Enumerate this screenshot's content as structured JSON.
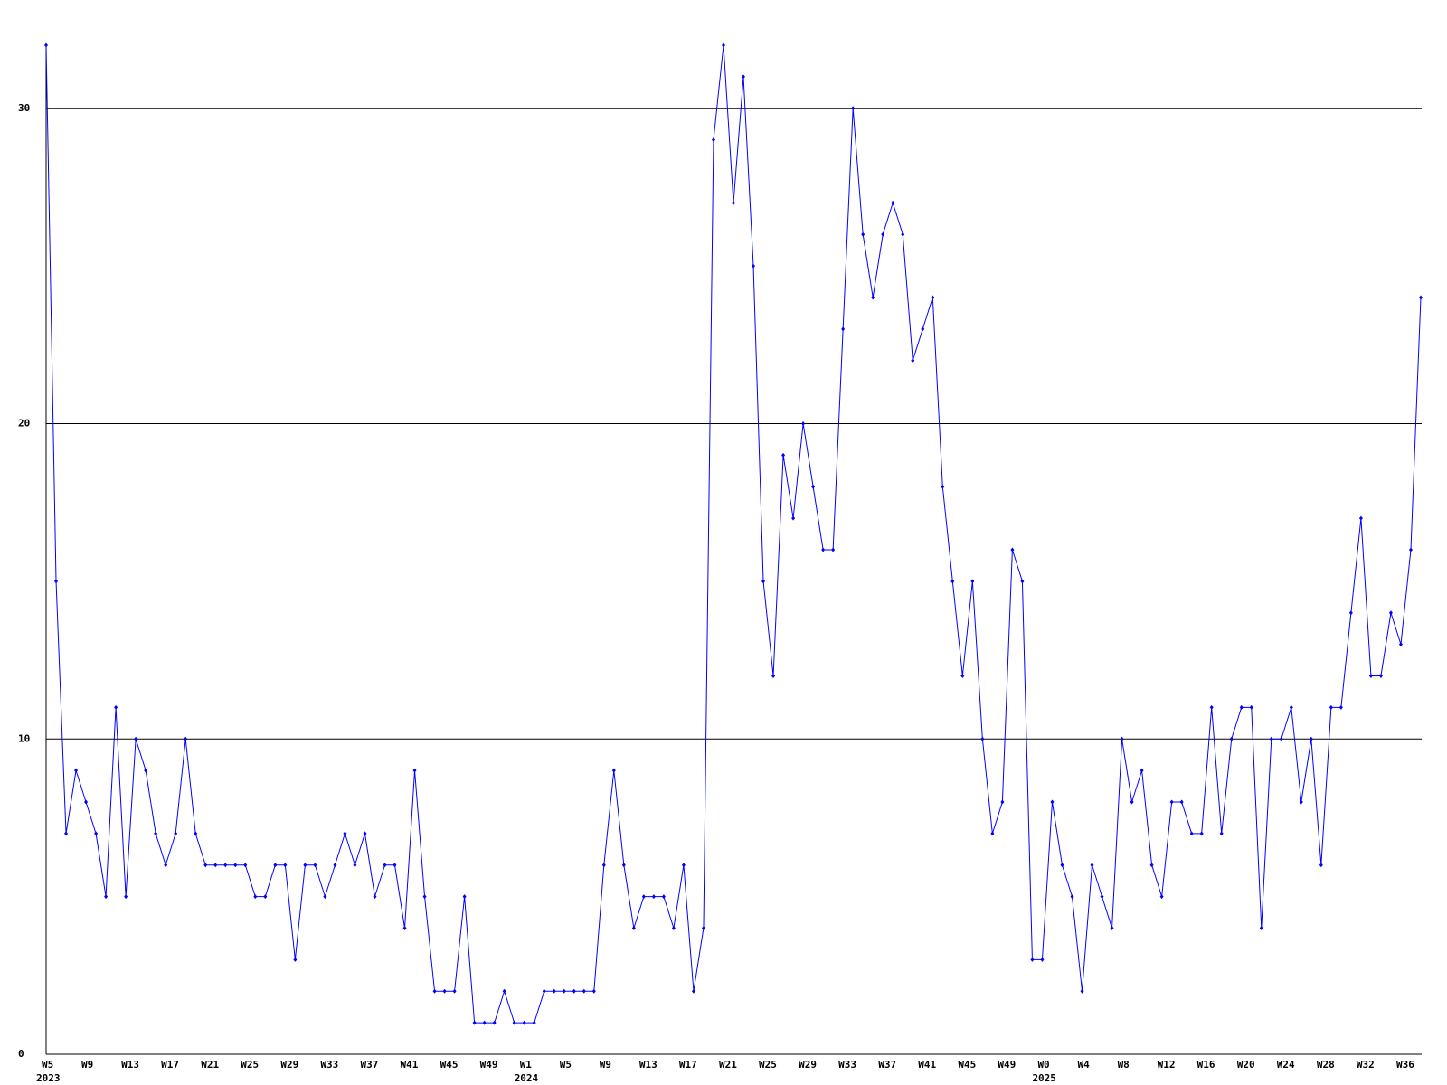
{
  "chart_data": {
    "type": "line",
    "categories": [
      "W5",
      null,
      null,
      null,
      "W9",
      null,
      null,
      null,
      "W13",
      null,
      null,
      null,
      "W17",
      null,
      null,
      null,
      "W21",
      null,
      null,
      null,
      "W25",
      null,
      null,
      null,
      "W29",
      null,
      null,
      null,
      "W33",
      null,
      null,
      null,
      "W37",
      null,
      null,
      null,
      "W41",
      null,
      null,
      null,
      "W45",
      null,
      null,
      null,
      "W49",
      null,
      null,
      null,
      "W1",
      null,
      null,
      null,
      "W5",
      null,
      null,
      null,
      "W9",
      null,
      null,
      null,
      "W13",
      null,
      null,
      null,
      "W17",
      null,
      null,
      null,
      "W21",
      null,
      null,
      null,
      "W25",
      null,
      null,
      null,
      "W29",
      null,
      null,
      null,
      "W33",
      null,
      null,
      null,
      "W37",
      null,
      null,
      null,
      "W41",
      null,
      null,
      null,
      "W45",
      null,
      null,
      null,
      "W49",
      null,
      null,
      null,
      "W0",
      null,
      null,
      null,
      "W4",
      null,
      null,
      null,
      "W8",
      null,
      null,
      null,
      "W12",
      null,
      null,
      null,
      "W16",
      null,
      null,
      null,
      "W20",
      null,
      null,
      null,
      "W24",
      null,
      null,
      null,
      "W28",
      null,
      null,
      null,
      "W32",
      null,
      null,
      null,
      "W36",
      null,
      null
    ],
    "year_labels": [
      "2023",
      "2024",
      "2025"
    ],
    "series": [
      {
        "color": "#0000ff",
        "values": [
          32,
          15,
          7,
          9,
          8,
          7,
          5,
          11,
          5,
          10,
          9,
          7,
          6,
          7,
          10,
          7,
          6,
          6,
          6,
          6,
          6,
          5,
          5,
          6,
          6,
          3,
          6,
          6,
          5,
          6,
          7,
          6,
          7,
          5,
          6,
          6,
          4,
          9,
          5,
          2,
          2,
          2,
          5,
          1,
          1,
          1,
          2,
          1,
          1,
          1,
          2,
          2,
          2,
          2,
          2,
          2,
          6,
          9,
          6,
          4,
          5,
          5,
          5,
          4,
          6,
          2,
          4,
          29,
          32,
          27,
          31,
          25,
          15,
          12,
          19,
          17,
          20,
          18,
          16,
          16,
          23,
          30,
          26,
          24,
          26,
          27,
          26,
          22,
          23,
          24,
          18,
          15,
          12,
          15,
          10,
          7,
          8,
          16,
          15,
          3,
          3,
          8,
          6,
          5,
          2,
          6,
          5,
          4,
          10,
          8,
          9,
          6,
          5,
          8,
          8,
          7,
          7,
          11,
          7,
          10,
          11,
          11,
          4,
          10,
          10,
          11,
          8,
          10,
          6,
          11,
          11,
          14,
          17,
          12,
          12,
          14,
          13,
          16,
          24
        ]
      }
    ],
    "ylim": [
      0,
      32
    ],
    "yticks": [
      0,
      10,
      20,
      30
    ],
    "grid": true
  }
}
